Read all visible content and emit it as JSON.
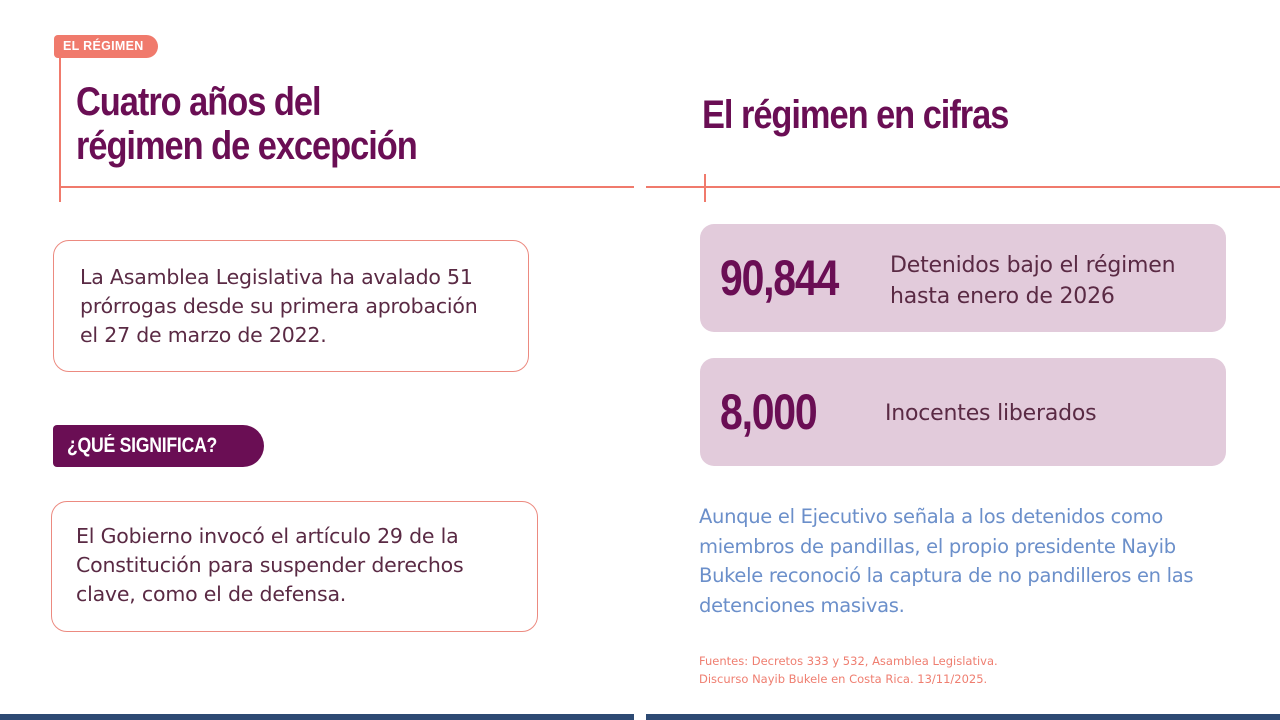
{
  "left": {
    "tag": "EL RÉGIMEN",
    "title_line1": "Cuatro años del",
    "title_line2": "régimen de excepción",
    "box1": {
      "line1": "La Asamblea Legislativa ha avalado 51",
      "line2": "prórrogas desde su primera aprobación",
      "line3": "el 27 de marzo de 2022."
    },
    "pill": "¿QUÉ SIGNIFICA?",
    "box2": {
      "line1": "El Gobierno invocó el artículo 29 de la",
      "line2": "Constitución para suspender derechos",
      "line3": "clave, como el de defensa."
    }
  },
  "right": {
    "title": "El régimen en cifras",
    "stats": [
      {
        "value": "90,844",
        "desc_line1": "Detenidos bajo el régimen",
        "desc_line2": "hasta enero de 2026"
      },
      {
        "value": "8,000",
        "desc_line1": "Inocentes liberados"
      }
    ],
    "note": {
      "line1": "Aunque el Ejecutivo señala a los detenidos como",
      "line2": "miembros de pandillas, el propio presidente Nayib",
      "line3": "Bukele reconoció la captura de no pandilleros en las",
      "line4": "detenciones masivas."
    },
    "sources": {
      "line1": "Fuentes:  Decretos 333 y 532, Asamblea Legislativa.",
      "line2": "Discurso Nayib Bukele en Costa Rica. 13/11/2025."
    }
  },
  "colors": {
    "accent_coral": "#f07a6c",
    "brand_purple": "#6a0e54",
    "card_lilac": "#e2cbdb",
    "note_blue": "#6b8fca",
    "bottom_bar_navy": "#2d4a73"
  }
}
